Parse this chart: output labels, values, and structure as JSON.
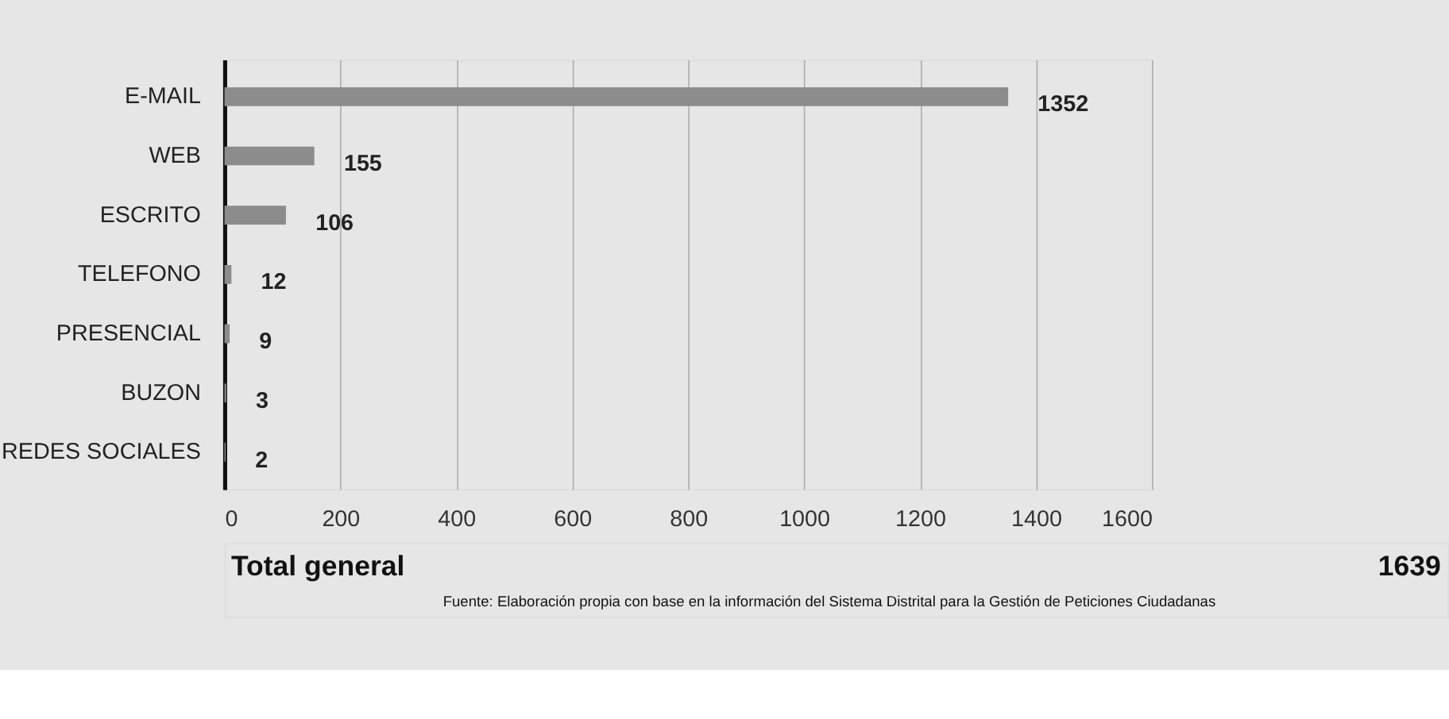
{
  "chart_data": {
    "type": "bar",
    "orientation": "horizontal",
    "categories": [
      "E-MAIL",
      "WEB",
      "ESCRITO",
      "TELEFONO",
      "PRESENCIAL",
      "BUZON",
      "REDES SOCIALES"
    ],
    "values": [
      1352,
      155,
      106,
      12,
      9,
      3,
      2
    ],
    "color": "#8c8c8c",
    "xlim": [
      0,
      1600
    ],
    "xticks": [
      0,
      200,
      400,
      600,
      800,
      1000,
      1200,
      1400,
      1600
    ],
    "grid": "x",
    "data_labels": true,
    "annotations": [
      "Total general",
      "1639",
      "Fuente: Elaboración propia con base en la información del Sistema Distrital para la Gestión de Peticiones Ciudadanas"
    ]
  }
}
